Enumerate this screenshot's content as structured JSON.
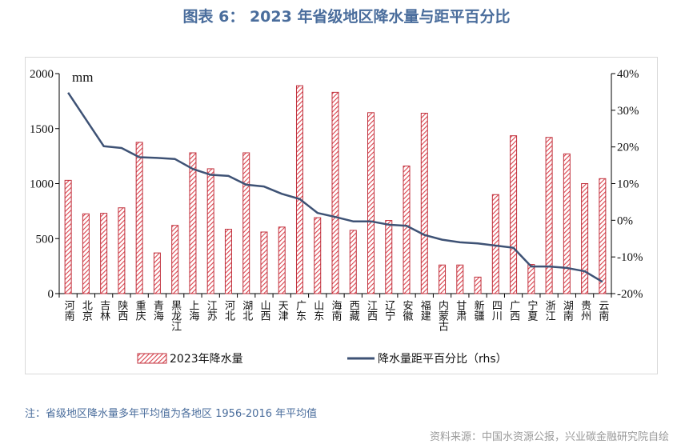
{
  "title": "图表 6：  2023 年省级地区降水量与距平百分比",
  "note": "注：省级地区降水量多年平均值为各地区 1956-2016 年平均值",
  "source": "资料来源：中国水资源公报，兴业碳金融研究院自绘",
  "colors": {
    "title": "#4a6d9c",
    "bar_stroke": "#c0303c",
    "bar_hatch": "#d9434d",
    "line": "#3e5275"
  },
  "chart_data": {
    "type": "bar+line",
    "unit_label": "mm",
    "categories": [
      "河南",
      "北京",
      "吉林",
      "陕西",
      "重庆",
      "青海",
      "黑龙江",
      "上海",
      "江苏",
      "河北",
      "湖北",
      "山西",
      "天津",
      "广东",
      "山东",
      "海南",
      "西藏",
      "江西",
      "辽宁",
      "安徽",
      "福建",
      "内蒙古",
      "甘肃",
      "新疆",
      "四川",
      "广西",
      "宁夏",
      "浙江",
      "湖南",
      "贵州",
      "云南"
    ],
    "series": [
      {
        "name": "2023年降水量",
        "type": "bar",
        "axis": "left",
        "values": [
          1030,
          725,
          730,
          780,
          1375,
          370,
          620,
          1280,
          1135,
          585,
          1280,
          560,
          605,
          1890,
          690,
          1830,
          575,
          1645,
          665,
          1160,
          1640,
          260,
          260,
          150,
          900,
          1435,
          265,
          1420,
          1270,
          1000,
          1045
        ]
      },
      {
        "name": "降水量距平百分比（rhs）",
        "type": "line",
        "axis": "right",
        "values": [
          34.8,
          27.5,
          20.2,
          19.7,
          17.2,
          17.0,
          16.7,
          14.0,
          12.4,
          12.1,
          9.7,
          9.2,
          7.2,
          5.8,
          2.0,
          0.9,
          -0.3,
          -0.3,
          -1.2,
          -1.5,
          -4.0,
          -5.3,
          -6.0,
          -6.3,
          -6.9,
          -7.5,
          -12.6,
          -12.6,
          -13.0,
          -13.9,
          -16.8
        ]
      }
    ],
    "ylim_left": [
      0,
      2000
    ],
    "yticks_left": [
      "0",
      "500",
      "1000",
      "1500",
      "2000"
    ],
    "ylim_right": [
      -20,
      40
    ],
    "yticks_right": [
      "-20%",
      "-10%",
      "0%",
      "10%",
      "20%",
      "30%",
      "40%"
    ],
    "grid": false,
    "legend_position": "bottom"
  }
}
